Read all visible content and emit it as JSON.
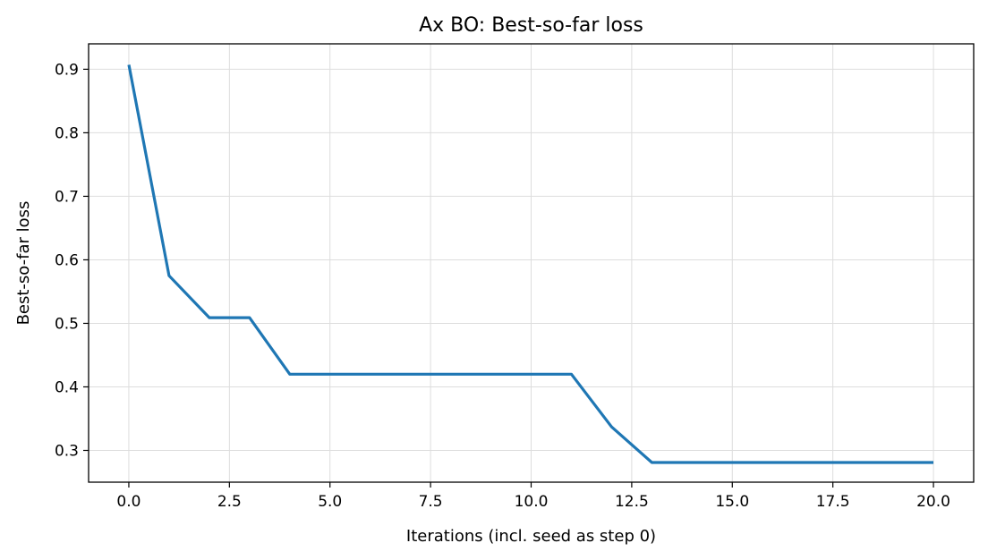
{
  "chart_data": {
    "type": "line",
    "title": "Ax BO: Best-so-far loss",
    "xlabel": "Iterations (incl. seed as step 0)",
    "ylabel": "Best-so-far loss",
    "xlim": [
      -1,
      21
    ],
    "ylim": [
      0.25,
      0.94
    ],
    "xticks": [
      0.0,
      2.5,
      5.0,
      7.5,
      10.0,
      12.5,
      15.0,
      17.5,
      20.0
    ],
    "xtick_labels": [
      "0.0",
      "2.5",
      "5.0",
      "7.5",
      "10.0",
      "12.5",
      "15.0",
      "17.5",
      "20.0"
    ],
    "yticks": [
      0.3,
      0.4,
      0.5,
      0.6,
      0.7,
      0.8,
      0.9
    ],
    "ytick_labels": [
      "0.3",
      "0.4",
      "0.5",
      "0.6",
      "0.7",
      "0.8",
      "0.9"
    ],
    "grid": true,
    "series": [
      {
        "color": "#1f77b4",
        "x": [
          0,
          1,
          2,
          3,
          4,
          5,
          6,
          7,
          8,
          9,
          10,
          11,
          12,
          13,
          14,
          15,
          16,
          17,
          18,
          19,
          20
        ],
        "y": [
          0.907,
          0.575,
          0.509,
          0.509,
          0.42,
          0.42,
          0.42,
          0.42,
          0.42,
          0.42,
          0.42,
          0.42,
          0.337,
          0.281,
          0.281,
          0.281,
          0.281,
          0.281,
          0.281,
          0.281,
          0.281
        ]
      }
    ]
  }
}
